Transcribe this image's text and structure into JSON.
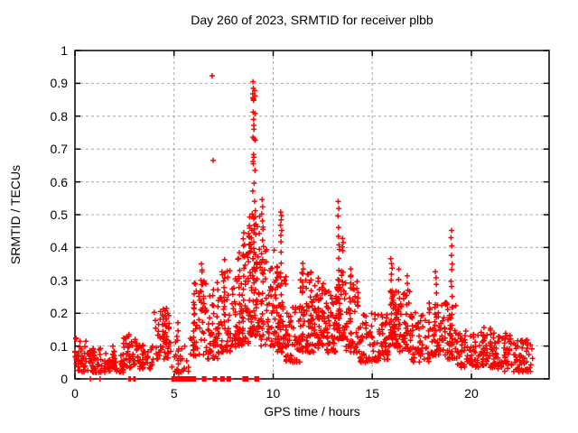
{
  "chart_data": {
    "type": "scatter",
    "title": "Day 260 of 2023, SRMTID for receiver plbb",
    "xlabel": "GPS time / hours",
    "ylabel": "SRMTID / TECUs",
    "xlim": [
      0,
      23.92
    ],
    "ylim": [
      0,
      1
    ],
    "xticks": [
      0,
      5,
      10,
      15,
      20
    ],
    "xtick_labels": [
      "0",
      "5",
      "10",
      "15",
      "20"
    ],
    "yticks": [
      0,
      0.1,
      0.2,
      0.3,
      0.4,
      0.5,
      0.6,
      0.7,
      0.8,
      0.9,
      1
    ],
    "ytick_labels": [
      "0",
      "0.1",
      "0.2",
      "0.3",
      "0.4",
      "0.5",
      "0.6",
      "0.7",
      "0.8",
      "0.9",
      "1"
    ],
    "grid": true,
    "legend": "none",
    "marker": "plus",
    "marker_color": "#ff0000",
    "grid_color": "#a8a8a8",
    "axis_color": "#000000",
    "seed": 42,
    "band_skew": 1.55,
    "points": [
      [
        6.92,
        0.923
      ],
      [
        6.97,
        0.665
      ],
      [
        8.98,
        0.905
      ],
      [
        9.0,
        0.885
      ],
      [
        9.06,
        0.878
      ],
      [
        8.97,
        0.868
      ],
      [
        9.08,
        0.862
      ],
      [
        8.98,
        0.856
      ],
      [
        9.0,
        0.852
      ],
      [
        9.01,
        0.848
      ],
      [
        8.99,
        0.812
      ],
      [
        9.09,
        0.808
      ],
      [
        9.01,
        0.79
      ],
      [
        9.02,
        0.772
      ],
      [
        9.03,
        0.76
      ],
      [
        8.98,
        0.736
      ],
      [
        9.04,
        0.731
      ],
      [
        9.1,
        0.727
      ],
      [
        9.01,
        0.683
      ],
      [
        9.03,
        0.675
      ],
      [
        8.98,
        0.662
      ],
      [
        9.0,
        0.655
      ],
      [
        9.08,
        0.635
      ],
      [
        9.04,
        0.596
      ],
      [
        8.97,
        0.572
      ],
      [
        9.06,
        0.541
      ],
      [
        9.1,
        0.512
      ],
      [
        8.94,
        0.502
      ],
      [
        8.99,
        0.494
      ],
      [
        9.02,
        0.488
      ],
      [
        9.05,
        0.468
      ],
      [
        8.92,
        0.452
      ],
      [
        9.12,
        0.44
      ],
      [
        9.44,
        0.546
      ],
      [
        9.47,
        0.524
      ],
      [
        9.42,
        0.502
      ],
      [
        9.46,
        0.481
      ],
      [
        9.49,
        0.462
      ],
      [
        10.38,
        0.508
      ],
      [
        10.42,
        0.497
      ],
      [
        10.4,
        0.484
      ],
      [
        10.37,
        0.468
      ],
      [
        10.43,
        0.452
      ],
      [
        10.39,
        0.437
      ],
      [
        13.28,
        0.54
      ],
      [
        13.31,
        0.519
      ],
      [
        13.27,
        0.496
      ],
      [
        13.3,
        0.461
      ],
      [
        13.29,
        0.434
      ],
      [
        13.32,
        0.408
      ],
      [
        13.5,
        0.428
      ],
      [
        13.53,
        0.415
      ],
      [
        13.49,
        0.402
      ],
      [
        13.52,
        0.39
      ],
      [
        19.0,
        0.452
      ],
      [
        18.97,
        0.43
      ],
      [
        19.01,
        0.405
      ],
      [
        18.99,
        0.376
      ],
      [
        19.03,
        0.35
      ],
      [
        15.93,
        0.366
      ],
      [
        15.97,
        0.351
      ],
      [
        16.0,
        0.337
      ],
      [
        8.52,
        0.445
      ],
      [
        8.49,
        0.427
      ],
      [
        8.55,
        0.409
      ],
      [
        11.49,
        0.352
      ],
      [
        11.52,
        0.335
      ],
      [
        16.34,
        0.334
      ],
      [
        16.76,
        0.314
      ],
      [
        18.18,
        0.326
      ],
      [
        18.22,
        0.308
      ],
      [
        4.62,
        0.215
      ],
      [
        4.55,
        0.207
      ],
      [
        4.68,
        0.2
      ],
      [
        7.55,
        0.363
      ],
      [
        7.57,
        0.322
      ],
      [
        6.38,
        0.35
      ],
      [
        6.41,
        0.332
      ]
    ],
    "strands": [
      {
        "x": 0.52,
        "y0": 0.04,
        "y1": 0.115,
        "n": 5
      },
      {
        "x": 1.95,
        "y0": 0.03,
        "y1": 0.1,
        "n": 5
      },
      {
        "x": 2.75,
        "y0": 0.04,
        "y1": 0.13,
        "n": 6
      },
      {
        "x": 3.45,
        "y0": 0.03,
        "y1": 0.1,
        "n": 5
      },
      {
        "x": 4.45,
        "y0": 0.1,
        "y1": 0.195,
        "n": 7
      },
      {
        "x": 4.6,
        "y0": 0.12,
        "y1": 0.19,
        "n": 6
      },
      {
        "x": 5.2,
        "y0": 0.02,
        "y1": 0.17,
        "n": 6
      },
      {
        "x": 6.0,
        "y0": 0.1,
        "y1": 0.285,
        "n": 9
      },
      {
        "x": 6.4,
        "y0": 0.12,
        "y1": 0.32,
        "n": 8
      },
      {
        "x": 7.2,
        "y0": 0.1,
        "y1": 0.3,
        "n": 8
      },
      {
        "x": 7.55,
        "y0": 0.15,
        "y1": 0.31,
        "n": 7
      },
      {
        "x": 8.3,
        "y0": 0.12,
        "y1": 0.335,
        "n": 9
      },
      {
        "x": 8.5,
        "y0": 0.15,
        "y1": 0.4,
        "n": 9
      },
      {
        "x": 9.0,
        "y0": 0.16,
        "y1": 0.44,
        "n": 12
      },
      {
        "x": 9.45,
        "y0": 0.2,
        "y1": 0.45,
        "n": 9
      },
      {
        "x": 10.4,
        "y0": 0.12,
        "y1": 0.42,
        "n": 10
      },
      {
        "x": 11.5,
        "y0": 0.1,
        "y1": 0.32,
        "n": 8
      },
      {
        "x": 11.9,
        "y0": 0.1,
        "y1": 0.33,
        "n": 8
      },
      {
        "x": 12.3,
        "y0": 0.1,
        "y1": 0.3,
        "n": 8
      },
      {
        "x": 13.3,
        "y0": 0.15,
        "y1": 0.39,
        "n": 9
      },
      {
        "x": 13.9,
        "y0": 0.1,
        "y1": 0.34,
        "n": 8
      },
      {
        "x": 15.95,
        "y0": 0.12,
        "y1": 0.32,
        "n": 9
      },
      {
        "x": 16.35,
        "y0": 0.1,
        "y1": 0.3,
        "n": 8
      },
      {
        "x": 16.75,
        "y0": 0.1,
        "y1": 0.29,
        "n": 7
      },
      {
        "x": 18.2,
        "y0": 0.08,
        "y1": 0.29,
        "n": 8
      },
      {
        "x": 19.0,
        "y0": 0.08,
        "y1": 0.33,
        "n": 10
      },
      {
        "x": 20.6,
        "y0": 0.04,
        "y1": 0.155,
        "n": 7
      },
      {
        "x": 21.7,
        "y0": 0.03,
        "y1": 0.145,
        "n": 7
      }
    ],
    "bands": [
      {
        "x0": 0.0,
        "x1": 0.35,
        "n": 28,
        "ymin": 0.025,
        "ymax": 0.125
      },
      {
        "x0": 0.3,
        "x1": 1.3,
        "n": 60,
        "ymin": 0.02,
        "ymax": 0.095
      },
      {
        "x0": 1.3,
        "x1": 2.45,
        "n": 55,
        "ymin": 0.02,
        "ymax": 0.085
      },
      {
        "x0": 2.45,
        "x1": 3.1,
        "n": 38,
        "ymin": 0.035,
        "ymax": 0.13
      },
      {
        "x0": 3.1,
        "x1": 3.95,
        "n": 42,
        "ymin": 0.03,
        "ymax": 0.105
      },
      {
        "x0": 3.95,
        "x1": 4.85,
        "n": 48,
        "ymin": 0.06,
        "ymax": 0.215
      },
      {
        "x0": 4.85,
        "x1": 5.85,
        "n": 26,
        "ymin": 0.02,
        "ymax": 0.13
      },
      {
        "x0": 5.85,
        "x1": 6.65,
        "n": 48,
        "ymin": 0.07,
        "ymax": 0.3
      },
      {
        "x0": 6.65,
        "x1": 7.35,
        "n": 48,
        "ymin": 0.06,
        "ymax": 0.28
      },
      {
        "x0": 7.35,
        "x1": 8.15,
        "n": 60,
        "ymin": 0.08,
        "ymax": 0.33
      },
      {
        "x0": 8.15,
        "x1": 8.75,
        "n": 55,
        "ymin": 0.1,
        "ymax": 0.4
      },
      {
        "x0": 8.75,
        "x1": 9.35,
        "n": 85,
        "ymin": 0.13,
        "ymax": 0.5
      },
      {
        "x0": 9.35,
        "x1": 10.15,
        "n": 65,
        "ymin": 0.1,
        "ymax": 0.42
      },
      {
        "x0": 10.15,
        "x1": 10.65,
        "n": 55,
        "ymin": 0.08,
        "ymax": 0.35
      },
      {
        "x0": 10.65,
        "x1": 11.35,
        "n": 55,
        "ymin": 0.05,
        "ymax": 0.22
      },
      {
        "x0": 11.35,
        "x1": 12.05,
        "n": 62,
        "ymin": 0.08,
        "ymax": 0.33
      },
      {
        "x0": 12.05,
        "x1": 12.65,
        "n": 55,
        "ymin": 0.1,
        "ymax": 0.3
      },
      {
        "x0": 12.65,
        "x1": 13.15,
        "n": 48,
        "ymin": 0.08,
        "ymax": 0.27
      },
      {
        "x0": 13.15,
        "x1": 13.65,
        "n": 55,
        "ymin": 0.12,
        "ymax": 0.33
      },
      {
        "x0": 13.65,
        "x1": 14.35,
        "n": 52,
        "ymin": 0.08,
        "ymax": 0.32
      },
      {
        "x0": 14.35,
        "x1": 15.35,
        "n": 58,
        "ymin": 0.05,
        "ymax": 0.2
      },
      {
        "x0": 15.35,
        "x1": 15.85,
        "n": 38,
        "ymin": 0.06,
        "ymax": 0.2
      },
      {
        "x0": 15.85,
        "x1": 16.25,
        "n": 48,
        "ymin": 0.1,
        "ymax": 0.28
      },
      {
        "x0": 16.25,
        "x1": 16.95,
        "n": 48,
        "ymin": 0.08,
        "ymax": 0.28
      },
      {
        "x0": 16.95,
        "x1": 17.85,
        "n": 52,
        "ymin": 0.05,
        "ymax": 0.21
      },
      {
        "x0": 17.85,
        "x1": 18.55,
        "n": 46,
        "ymin": 0.07,
        "ymax": 0.24
      },
      {
        "x0": 18.55,
        "x1": 19.25,
        "n": 52,
        "ymin": 0.06,
        "ymax": 0.24
      },
      {
        "x0": 19.25,
        "x1": 20.05,
        "n": 48,
        "ymin": 0.035,
        "ymax": 0.15
      },
      {
        "x0": 20.05,
        "x1": 21.05,
        "n": 58,
        "ymin": 0.035,
        "ymax": 0.155
      },
      {
        "x0": 21.05,
        "x1": 22.05,
        "n": 58,
        "ymin": 0.03,
        "ymax": 0.14
      },
      {
        "x0": 22.05,
        "x1": 23.1,
        "n": 58,
        "ymin": 0.02,
        "ymax": 0.12
      }
    ],
    "zero_runs": [
      {
        "x0": 0.78,
        "x1": 0.78,
        "n": 1
      },
      {
        "x0": 1.27,
        "x1": 1.27,
        "n": 1
      },
      {
        "x0": 2.73,
        "x1": 2.79,
        "n": 2
      },
      {
        "x0": 2.97,
        "x1": 3.03,
        "n": 2
      },
      {
        "x0": 4.9,
        "x1": 5.02,
        "n": 4
      },
      {
        "x0": 5.1,
        "x1": 6.08,
        "n": 24
      },
      {
        "x0": 6.44,
        "x1": 6.6,
        "n": 4
      },
      {
        "x0": 6.98,
        "x1": 7.14,
        "n": 4
      },
      {
        "x0": 7.36,
        "x1": 7.52,
        "n": 4
      },
      {
        "x0": 7.68,
        "x1": 7.84,
        "n": 4
      },
      {
        "x0": 8.48,
        "x1": 8.72,
        "n": 6
      },
      {
        "x0": 9.08,
        "x1": 9.26,
        "n": 5
      }
    ]
  }
}
